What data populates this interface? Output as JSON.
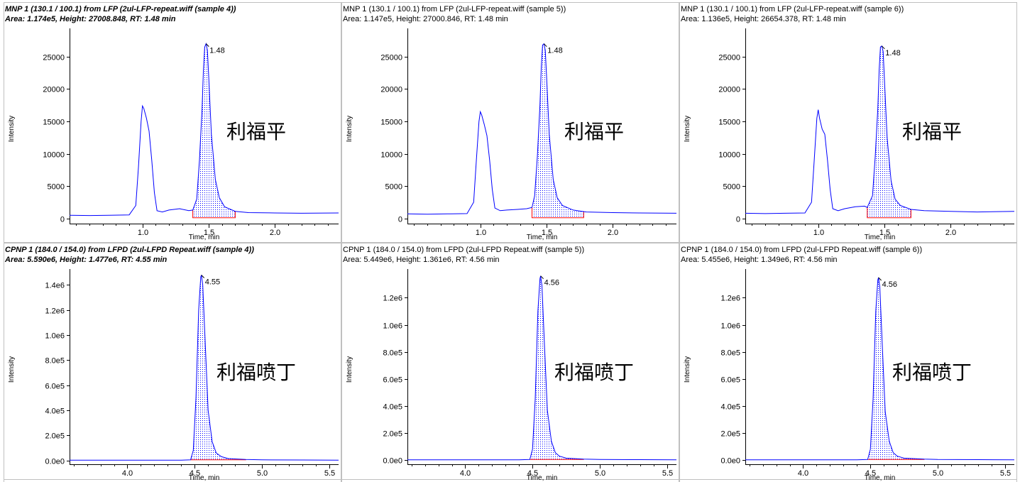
{
  "colors": {
    "trace": "#0000ff",
    "baseline": "#ff0000",
    "axis": "#000000",
    "panel_border": "#c0c0c0",
    "background": "#ffffff"
  },
  "chart_data": [
    {
      "type": "line",
      "header1": "MNP 1 (130.1 / 100.1) from LFP (2ul-LFP-repeat.wiff (sample 4))",
      "header2": "Area: 1.174e5, Height: 27008.848, RT: 1.48 min",
      "active": true,
      "xlabel": "Time, min",
      "ylabel": "Intensity",
      "annotation": "利福平",
      "peak_label": "1.48",
      "xlim": [
        0.45,
        2.48
      ],
      "ylim": [
        -800,
        28500
      ],
      "xticks": [
        1.0,
        1.5,
        2.0
      ],
      "xtick_labels": [
        "1.0",
        "1.5",
        "2.0"
      ],
      "yticks": [
        0,
        5000,
        10000,
        15000,
        20000,
        25000
      ],
      "ytick_labels": [
        "0",
        "5000",
        "10000",
        "15000",
        "20000",
        "25000"
      ],
      "peak": {
        "rt": 1.48,
        "height": 27008.848,
        "start": 1.38,
        "end": 1.7
      },
      "x": [
        0.45,
        0.6,
        0.75,
        0.9,
        0.95,
        0.97,
        0.99,
        1.0,
        1.01,
        1.03,
        1.05,
        1.07,
        1.09,
        1.11,
        1.15,
        1.2,
        1.28,
        1.35,
        1.38,
        1.41,
        1.43,
        1.45,
        1.46,
        1.47,
        1.48,
        1.49,
        1.5,
        1.52,
        1.55,
        1.58,
        1.62,
        1.7,
        1.8,
        2.0,
        2.2,
        2.48
      ],
      "y": [
        500,
        450,
        480,
        550,
        2000,
        8000,
        15000,
        17400,
        17000,
        15500,
        13500,
        9000,
        4000,
        1200,
        1000,
        1300,
        1500,
        1200,
        1300,
        3000,
        9000,
        17000,
        23000,
        26500,
        27008,
        26000,
        22000,
        13000,
        6000,
        3200,
        1800,
        1100,
        900,
        850,
        800,
        850
      ]
    },
    {
      "type": "line",
      "header1": "MNP 1 (130.1 / 100.1) from LFP (2ul-LFP-repeat.wiff (sample 5))",
      "header2": "Area: 1.147e5, Height: 27000.846, RT: 1.48 min",
      "active": false,
      "xlabel": "Time, min",
      "ylabel": "Intensity",
      "annotation": "利福平",
      "peak_label": "1.48",
      "xlim": [
        0.45,
        2.48
      ],
      "ylim": [
        -800,
        28500
      ],
      "xticks": [
        1.0,
        1.5,
        2.0
      ],
      "xtick_labels": [
        "1.0",
        "1.5",
        "2.0"
      ],
      "yticks": [
        0,
        5000,
        10000,
        15000,
        20000,
        25000
      ],
      "ytick_labels": [
        "0",
        "5000",
        "10000",
        "15000",
        "20000",
        "25000"
      ],
      "peak": {
        "rt": 1.48,
        "height": 27000.846,
        "start": 1.39,
        "end": 1.78
      },
      "x": [
        0.45,
        0.6,
        0.75,
        0.9,
        0.95,
        0.97,
        0.99,
        1.0,
        1.01,
        1.03,
        1.05,
        1.07,
        1.09,
        1.11,
        1.15,
        1.2,
        1.28,
        1.35,
        1.39,
        1.41,
        1.43,
        1.45,
        1.46,
        1.47,
        1.48,
        1.49,
        1.5,
        1.52,
        1.55,
        1.58,
        1.62,
        1.7,
        1.8,
        2.0,
        2.2,
        2.48
      ],
      "y": [
        700,
        650,
        700,
        750,
        2500,
        9000,
        15000,
        16500,
        16000,
        14500,
        12800,
        9000,
        4500,
        1600,
        1200,
        1300,
        1400,
        1500,
        1700,
        3500,
        9500,
        17500,
        23500,
        26800,
        27000,
        26000,
        22000,
        13000,
        6000,
        3200,
        2000,
        1300,
        1000,
        900,
        850,
        800
      ]
    },
    {
      "type": "line",
      "header1": "MNP 1 (130.1 / 100.1) from LFP (2ul-LFP-repeat.wiff (sample 6))",
      "header2": "Area: 1.136e5, Height: 26654.378, RT: 1.48 min",
      "active": false,
      "xlabel": "Time, min",
      "ylabel": "Intensity",
      "annotation": "利福平",
      "peak_label": "1.48",
      "xlim": [
        0.45,
        2.48
      ],
      "ylim": [
        -800,
        28500
      ],
      "xticks": [
        1.0,
        1.5,
        2.0
      ],
      "xtick_labels": [
        "1.0",
        "1.5",
        "2.0"
      ],
      "yticks": [
        0,
        5000,
        10000,
        15000,
        20000,
        25000
      ],
      "ytick_labels": [
        "0",
        "5000",
        "10000",
        "15000",
        "20000",
        "25000"
      ],
      "peak": {
        "rt": 1.48,
        "height": 26654.378,
        "start": 1.37,
        "end": 1.7
      },
      "x": [
        0.45,
        0.6,
        0.75,
        0.9,
        0.95,
        0.97,
        0.99,
        1.0,
        1.01,
        1.03,
        1.05,
        1.07,
        1.09,
        1.11,
        1.15,
        1.2,
        1.28,
        1.35,
        1.37,
        1.41,
        1.43,
        1.45,
        1.46,
        1.47,
        1.48,
        1.49,
        1.5,
        1.52,
        1.55,
        1.58,
        1.62,
        1.7,
        1.8,
        2.0,
        2.2,
        2.48
      ],
      "y": [
        800,
        750,
        800,
        850,
        2500,
        9000,
        15500,
        16800,
        15500,
        13800,
        13000,
        9000,
        4500,
        1500,
        1200,
        1500,
        1800,
        1900,
        1700,
        3500,
        9500,
        17000,
        23000,
        26500,
        26654,
        25800,
        21500,
        12500,
        5800,
        3000,
        2000,
        1400,
        1200,
        1100,
        1000,
        1100
      ]
    },
    {
      "type": "line",
      "header1": "CPNP 1 (184.0 / 154.0) from LFPD (2ul-LFPD Repeat.wiff (sample 4))",
      "header2": "Area: 5.590e6, Height: 1.477e6, RT: 4.55 min",
      "active": true,
      "xlabel": "Time, min",
      "ylabel": "Intensity",
      "annotation": "利福喷丁",
      "peak_label": "4.55",
      "xlim": [
        3.57,
        5.57
      ],
      "ylim": [
        -30000,
        1480000
      ],
      "xticks": [
        4.0,
        4.5,
        5.0,
        5.5
      ],
      "xtick_labels": [
        "4.0",
        "4.5",
        "5.0",
        "5.5"
      ],
      "yticks": [
        0,
        200000,
        400000,
        600000,
        800000,
        1000000,
        1200000,
        1400000
      ],
      "ytick_labels": [
        "0.0e0",
        "2.0e5",
        "4.0e5",
        "6.0e5",
        "8.0e5",
        "1.0e6",
        "1.2e6",
        "1.4e6"
      ],
      "peak": {
        "rt": 4.55,
        "height": 1477000,
        "start": 4.47,
        "end": 4.88
      },
      "x": [
        3.57,
        4.0,
        4.4,
        4.47,
        4.49,
        4.51,
        4.53,
        4.545,
        4.55,
        4.56,
        4.58,
        4.6,
        4.63,
        4.66,
        4.7,
        4.75,
        4.88,
        5.0,
        5.3,
        5.57
      ],
      "y": [
        3000,
        3000,
        3000,
        5000,
        80000,
        500000,
        1200000,
        1460000,
        1477000,
        1400000,
        900000,
        400000,
        150000,
        60000,
        30000,
        15000,
        8000,
        5000,
        4000,
        3000
      ]
    },
    {
      "type": "line",
      "header1": "CPNP 1 (184.0 / 154.0) from LFPD (2ul-LFPD Repeat.wiff (sample 5))",
      "header2": "Area: 5.449e6, Height: 1.361e6, RT: 4.56 min",
      "active": false,
      "xlabel": "Time, min",
      "ylabel": "Intensity",
      "annotation": "利福喷丁",
      "peak_label": "4.56",
      "xlim": [
        3.57,
        5.57
      ],
      "ylim": [
        -30000,
        1370000
      ],
      "xticks": [
        4.0,
        4.5,
        5.0,
        5.5
      ],
      "xtick_labels": [
        "4.0",
        "4.5",
        "5.0",
        "5.5"
      ],
      "yticks": [
        0,
        200000,
        400000,
        600000,
        800000,
        1000000,
        1200000
      ],
      "ytick_labels": [
        "0.0e0",
        "2.0e5",
        "4.0e5",
        "6.0e5",
        "8.0e5",
        "1.0e6",
        "1.2e6"
      ],
      "peak": {
        "rt": 4.56,
        "height": 1361000,
        "start": 4.48,
        "end": 4.88
      },
      "x": [
        3.57,
        4.0,
        4.4,
        4.48,
        4.5,
        4.52,
        4.54,
        4.555,
        4.56,
        4.57,
        4.59,
        4.61,
        4.64,
        4.67,
        4.7,
        4.75,
        4.88,
        5.0,
        5.3,
        5.57
      ],
      "y": [
        3000,
        3000,
        3000,
        5000,
        80000,
        450000,
        1100000,
        1340000,
        1361000,
        1290000,
        820000,
        370000,
        140000,
        55000,
        30000,
        15000,
        8000,
        5000,
        4000,
        3000
      ]
    },
    {
      "type": "line",
      "header1": "CPNP 1 (184.0 / 154.0) from LFPD (2ul-LFPD Repeat.wiff (sample 6))",
      "header2": "Area: 5.455e6, Height: 1.349e6, RT: 4.56 min",
      "active": false,
      "xlabel": "Time, min",
      "ylabel": "Intensity",
      "annotation": "利福喷丁",
      "peak_label": "4.56",
      "xlim": [
        3.57,
        5.57
      ],
      "ylim": [
        -30000,
        1370000
      ],
      "xticks": [
        4.0,
        4.5,
        5.0,
        5.5
      ],
      "xtick_labels": [
        "4.0",
        "4.5",
        "5.0",
        "5.5"
      ],
      "yticks": [
        0,
        200000,
        400000,
        600000,
        800000,
        1000000,
        1200000
      ],
      "ytick_labels": [
        "0.0e0",
        "2.0e5",
        "4.0e5",
        "6.0e5",
        "8.0e5",
        "1.0e6",
        "1.2e6"
      ],
      "peak": {
        "rt": 4.56,
        "height": 1349000,
        "start": 4.48,
        "end": 4.9
      },
      "x": [
        3.57,
        4.0,
        4.4,
        4.48,
        4.5,
        4.52,
        4.54,
        4.555,
        4.56,
        4.57,
        4.59,
        4.61,
        4.64,
        4.67,
        4.7,
        4.75,
        4.9,
        5.0,
        5.3,
        5.57
      ],
      "y": [
        3000,
        3000,
        3000,
        5000,
        80000,
        450000,
        1100000,
        1330000,
        1349000,
        1280000,
        810000,
        360000,
        140000,
        55000,
        30000,
        15000,
        8000,
        5000,
        4000,
        3000
      ]
    }
  ]
}
